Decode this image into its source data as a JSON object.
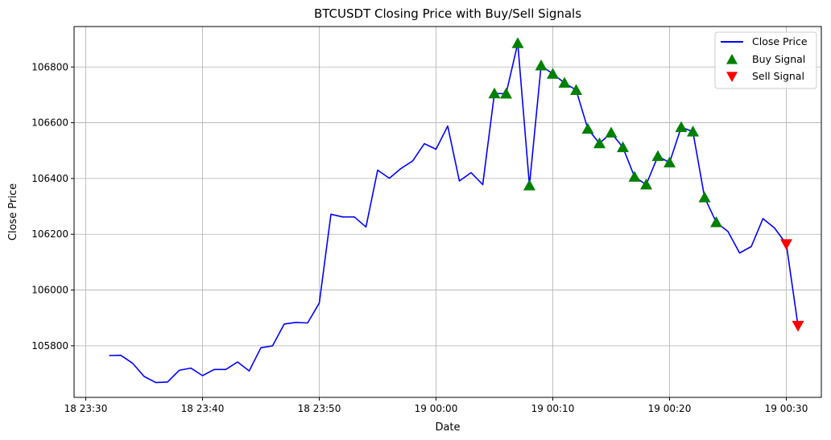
{
  "chart_data": {
    "type": "line",
    "title": "BTCUSDT Closing Price with Buy/Sell Signals",
    "xlabel": "Date",
    "ylabel": "Close Price",
    "x_start": "18 23:32",
    "x_step_minutes": 1,
    "xlim": [
      "18 23:29",
      "19 00:33"
    ],
    "ylim": [
      105615,
      106945
    ],
    "x_ticks": [
      "18 23:30",
      "18 23:40",
      "18 23:50",
      "19 00:00",
      "19 00:10",
      "19 00:20",
      "19 00:30"
    ],
    "y_ticks": [
      105800,
      106000,
      106200,
      106400,
      106600,
      106800
    ],
    "grid": true,
    "legend_position": "top-right",
    "series": [
      {
        "name": "Close Price",
        "style": "line",
        "color": "#0000ff",
        "values": [
          105765,
          105766,
          105738,
          105690,
          105668,
          105670,
          105712,
          105720,
          105693,
          105715,
          105715,
          105742,
          105710,
          105793,
          105800,
          105878,
          105884,
          105882,
          105953,
          106272,
          106262,
          106262,
          106226,
          106430,
          106401,
          106436,
          106463,
          106525,
          106505,
          106588,
          106391,
          106421,
          106378,
          106705,
          106704,
          106885,
          106375,
          106805,
          106775,
          106743,
          106717,
          106578,
          106526,
          106564,
          106512,
          106406,
          106378,
          106480,
          106457,
          106584,
          106568,
          106332,
          106243,
          106210,
          106133,
          106156,
          106256,
          106222,
          106165,
          105872
        ]
      }
    ],
    "buy_signals": {
      "name": "Buy Signal",
      "color": "#008000",
      "points": [
        [
          "19 00:05",
          106705
        ],
        [
          "19 00:06",
          106704
        ],
        [
          "19 00:07",
          106885
        ],
        [
          "19 00:08",
          106375
        ],
        [
          "19 00:09",
          106805
        ],
        [
          "19 00:10",
          106775
        ],
        [
          "19 00:11",
          106743
        ],
        [
          "19 00:12",
          106717
        ],
        [
          "19 00:13",
          106578
        ],
        [
          "19 00:14",
          106526
        ],
        [
          "19 00:15",
          106564
        ],
        [
          "19 00:16",
          106512
        ],
        [
          "19 00:17",
          106406
        ],
        [
          "19 00:18",
          106378
        ],
        [
          "19 00:19",
          106480
        ],
        [
          "19 00:20",
          106457
        ],
        [
          "19 00:21",
          106584
        ],
        [
          "19 00:22",
          106568
        ],
        [
          "19 00:23",
          106332
        ],
        [
          "19 00:24",
          106243
        ]
      ]
    },
    "sell_signals": {
      "name": "Sell Signal",
      "color": "#ff0000",
      "points": [
        [
          "19 00:30",
          106165
        ],
        [
          "19 00:31",
          105872
        ]
      ]
    }
  }
}
